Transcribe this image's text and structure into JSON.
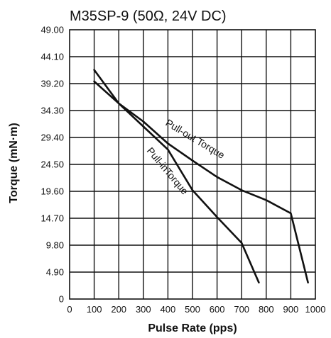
{
  "chart_data": {
    "type": "line",
    "title": "M35SP-9 (50Ω, 24V DC)",
    "xlabel": "Pulse Rate (pps)",
    "ylabel": "Torque (mN·m)",
    "xlim": [
      0,
      1000
    ],
    "ylim": [
      0,
      49
    ],
    "x_ticks": [
      "0",
      "100",
      "200",
      "300",
      "400",
      "500",
      "600",
      "700",
      "800",
      "900",
      "1000"
    ],
    "y_ticks": [
      "0",
      "4.90",
      "9.80",
      "14.70",
      "19.60",
      "24.50",
      "29.40",
      "34.30",
      "39.20",
      "44.10",
      "49.00"
    ],
    "grid": true,
    "series": [
      {
        "name": "Pull-out Torque",
        "x": [
          100,
          200,
          300,
          400,
          500,
          600,
          700,
          800,
          900,
          970
        ],
        "y": [
          39.6,
          35.6,
          32.3,
          28.3,
          25.2,
          22.2,
          19.8,
          18.0,
          15.6,
          3.0
        ]
      },
      {
        "name": "Pull-inTorque",
        "x": [
          100,
          200,
          300,
          400,
          500,
          600,
          700,
          770
        ],
        "y": [
          41.7,
          35.6,
          31.4,
          27.2,
          19.8,
          14.9,
          10.2,
          3.0
        ]
      }
    ]
  }
}
